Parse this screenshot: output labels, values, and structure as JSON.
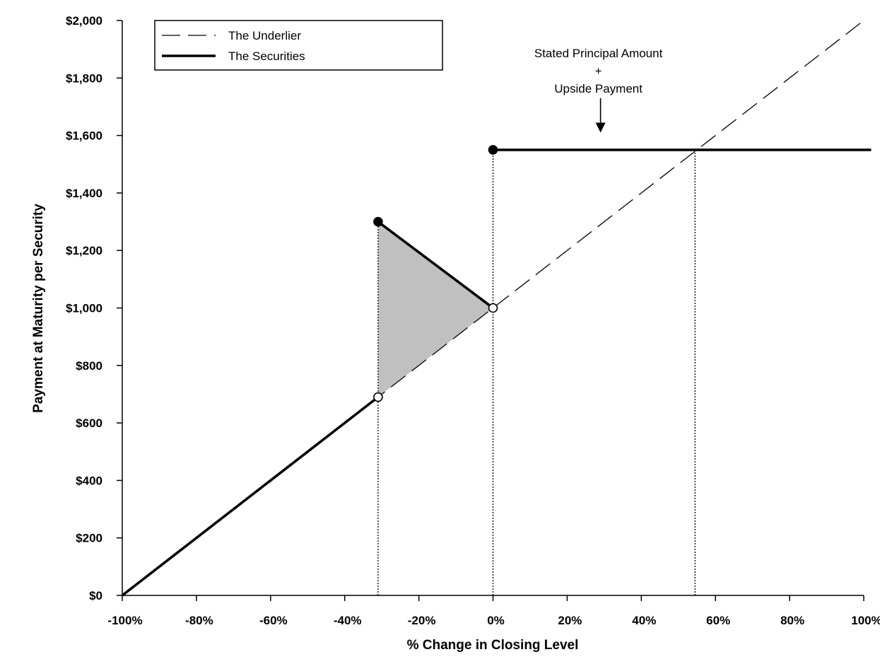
{
  "chart_data": {
    "type": "line",
    "xlabel": "% Change in Closing Level",
    "ylabel": "Payment at Maturity per Security",
    "xlim": [
      -100,
      100
    ],
    "ylim": [
      0,
      2000
    ],
    "x_ticks": [
      -100,
      -80,
      -60,
      -40,
      -20,
      0,
      20,
      40,
      60,
      80,
      100
    ],
    "x_tick_labels": [
      "-100%",
      "-80%",
      "-60%",
      "-40%",
      "-20%",
      "0%",
      "20%",
      "40%",
      "60%",
      "80%",
      "100%"
    ],
    "y_ticks": [
      0,
      200,
      400,
      600,
      800,
      1000,
      1200,
      1400,
      1600,
      1800,
      2000
    ],
    "y_tick_labels": [
      "$0",
      "$200",
      "$400",
      "$600",
      "$800",
      "$1,000",
      "$1,200",
      "$1,400",
      "$1,600",
      "$1,800",
      "$2,000"
    ],
    "legend": {
      "position": "top-left",
      "entries": [
        {
          "label": "The Underlier",
          "style": "dashed"
        },
        {
          "label": "The Securities",
          "style": "solid-thick"
        }
      ]
    },
    "series": [
      {
        "name": "The Underlier",
        "style": "dashed",
        "points": [
          [
            -100,
            0
          ],
          [
            100,
            2000
          ]
        ]
      },
      {
        "name": "The Securities",
        "style": "solid-thick",
        "segments": [
          [
            [
              -100,
              0
            ],
            [
              -31,
              690
            ]
          ],
          [
            [
              -31,
              1300
            ],
            [
              0,
              1000
            ]
          ],
          [
            [
              0,
              1550
            ],
            [
              102,
              1550
            ]
          ]
        ]
      }
    ],
    "markers": [
      {
        "x": -31,
        "y": 1300,
        "fill": "filled"
      },
      {
        "x": 0,
        "y": 1550,
        "fill": "filled"
      },
      {
        "x": -31,
        "y": 690,
        "fill": "open"
      },
      {
        "x": 0,
        "y": 1000,
        "fill": "open"
      }
    ],
    "shaded_region": {
      "points": [
        [
          -31,
          1300
        ],
        [
          0,
          1000
        ],
        [
          -31,
          690
        ]
      ],
      "color": "#c0c0c0"
    },
    "reference_lines": [
      {
        "x": -31,
        "y_from": 0,
        "y_to": 1300
      },
      {
        "x": 0,
        "y_from": 0,
        "y_to": 1550
      },
      {
        "x": 54.5,
        "y_from": 0,
        "y_to": 1550
      }
    ],
    "annotation": {
      "lines": [
        "Stated Principal Amount",
        "+",
        "Upside Payment"
      ],
      "arrow_x": 29,
      "arrow_from_y": 1730,
      "arrow_to_y": 1610
    }
  }
}
